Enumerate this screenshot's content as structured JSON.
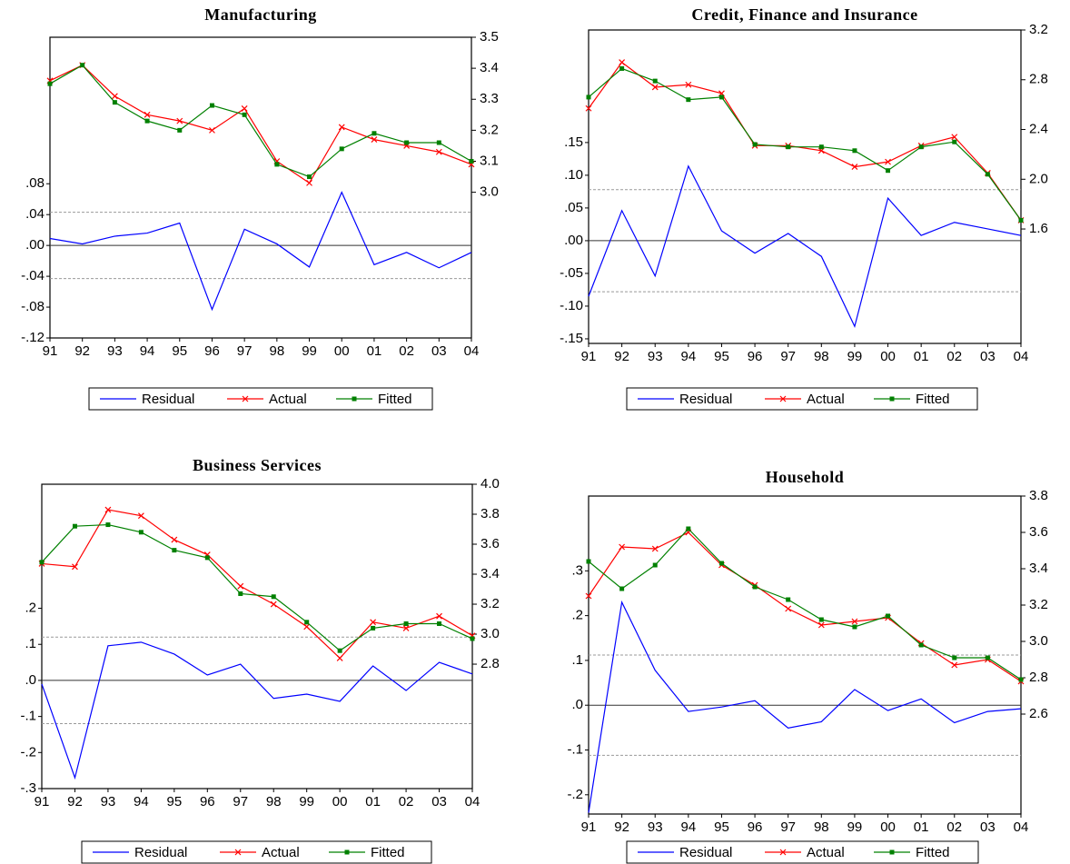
{
  "chart_data": [
    {
      "type": "line",
      "title": "Manufacturing",
      "categories": [
        "91",
        "92",
        "93",
        "94",
        "95",
        "96",
        "97",
        "98",
        "99",
        "00",
        "01",
        "02",
        "03",
        "04"
      ],
      "ylim": [
        -0.12,
        0.27
      ],
      "yticks": [
        {
          "value": -0.12,
          "label": "-.12"
        },
        {
          "value": -0.08,
          "label": "-.08"
        },
        {
          "value": -0.04,
          "label": "-.04"
        },
        {
          "value": 0,
          "label": ".00"
        },
        {
          "value": 0.04,
          "label": ".04"
        },
        {
          "value": 0.08,
          "label": ".08"
        }
      ],
      "y2lim": [
        2.53,
        3.5
      ],
      "y2ticks": [
        {
          "value": 3,
          "label": "3.0"
        },
        3.1,
        3.2,
        3.3,
        3.4,
        3.5
      ],
      "std_error_band": 0.043,
      "legend": "bottom",
      "series": [
        {
          "name": "Residual",
          "color": "#0000ff",
          "axis": "y",
          "values": [
            0.009,
            0.002,
            0.012,
            0.016,
            0.029,
            -0.083,
            0.021,
            0.002,
            -0.028,
            0.069,
            -0.025,
            -0.009,
            -0.029,
            -0.009
          ]
        },
        {
          "name": "Actual",
          "color": "#ff0000",
          "axis": "y2",
          "marker": "x",
          "values": [
            3.36,
            3.41,
            3.31,
            3.25,
            3.23,
            3.2,
            3.27,
            3.1,
            3.03,
            3.21,
            3.17,
            3.15,
            3.13,
            3.09
          ]
        },
        {
          "name": "Fitted",
          "color": "#008000",
          "axis": "y2",
          "marker": "square",
          "values": [
            3.35,
            3.41,
            3.29,
            3.23,
            3.2,
            3.28,
            3.25,
            3.09,
            3.05,
            3.14,
            3.19,
            3.16,
            3.16,
            3.1
          ]
        }
      ]
    },
    {
      "type": "line",
      "title": "Credit, Finance and Insurance",
      "categories": [
        "91",
        "92",
        "93",
        "94",
        "95",
        "96",
        "97",
        "98",
        "99",
        "00",
        "01",
        "02",
        "03",
        "04"
      ],
      "ylim": [
        -0.157,
        0.322
      ],
      "yticks": [
        {
          "value": -0.15,
          "label": "-.15"
        },
        {
          "value": -0.1,
          "label": "-.10"
        },
        {
          "value": -0.05,
          "label": "-.05"
        },
        {
          "value": 0,
          "label": ".00"
        },
        {
          "value": 0.05,
          "label": ".05"
        },
        {
          "value": 0.1,
          "label": ".10"
        },
        {
          "value": 0.15,
          "label": ".15"
        }
      ],
      "y2lim": [
        0.68,
        3.2
      ],
      "y2ticks": [
        1.6,
        {
          "value": 2,
          "label": "2.0"
        },
        2.4,
        2.8,
        3.2
      ],
      "std_error_band": 0.078,
      "legend": "bottom",
      "series": [
        {
          "name": "Residual",
          "color": "#0000ff",
          "axis": "y",
          "values": [
            -0.085,
            0.046,
            -0.054,
            0.114,
            0.015,
            -0.019,
            0.011,
            -0.024,
            -0.131,
            0.065,
            0.008,
            0.028,
            0.018,
            0.008
          ]
        },
        {
          "name": "Actual",
          "color": "#ff0000",
          "axis": "y2",
          "marker": "x",
          "values": [
            2.57,
            2.94,
            2.74,
            2.76,
            2.69,
            2.27,
            2.27,
            2.23,
            2.1,
            2.14,
            2.27,
            2.34,
            2.05,
            1.67
          ]
        },
        {
          "name": "Fitted",
          "color": "#008000",
          "axis": "y2",
          "marker": "square",
          "values": [
            2.66,
            2.89,
            2.79,
            2.64,
            2.66,
            2.28,
            2.26,
            2.26,
            2.23,
            2.07,
            2.26,
            2.3,
            2.04,
            1.67
          ]
        }
      ]
    },
    {
      "type": "line",
      "title": "Business Services",
      "categories": [
        "91",
        "92",
        "93",
        "94",
        "95",
        "96",
        "97",
        "98",
        "99",
        "00",
        "01",
        "02",
        "03",
        "04"
      ],
      "ylim": [
        -0.3,
        0.544
      ],
      "yticks": [
        {
          "value": -0.3,
          "label": "-.3"
        },
        {
          "value": -0.2,
          "label": "-.2"
        },
        {
          "value": -0.1,
          "label": "-.1"
        },
        {
          "value": 0,
          "label": ".0"
        },
        {
          "value": 0.1,
          "label": ".1"
        },
        {
          "value": 0.2,
          "label": ".2"
        }
      ],
      "y2lim": [
        1.97,
        4.0
      ],
      "y2ticks": [
        2.8,
        {
          "value": 3,
          "label": "3.0"
        },
        3.2,
        3.4,
        3.6,
        3.8,
        {
          "value": 4,
          "label": "4.0"
        }
      ],
      "std_error_band": 0.12,
      "legend": "bottom",
      "series": [
        {
          "name": "Residual",
          "color": "#0000ff",
          "axis": "y",
          "values": [
            -0.01,
            -0.27,
            0.096,
            0.106,
            0.073,
            0.015,
            0.045,
            -0.05,
            -0.038,
            -0.058,
            0.04,
            -0.028,
            0.05,
            0.018
          ]
        },
        {
          "name": "Actual",
          "color": "#ff0000",
          "axis": "y2",
          "marker": "x",
          "values": [
            3.47,
            3.45,
            3.83,
            3.79,
            3.63,
            3.53,
            3.32,
            3.2,
            3.05,
            2.84,
            3.08,
            3.04,
            3.12,
            2.99
          ]
        },
        {
          "name": "Fitted",
          "color": "#008000",
          "axis": "y2",
          "marker": "square",
          "values": [
            3.48,
            3.72,
            3.73,
            3.68,
            3.56,
            3.51,
            3.27,
            3.25,
            3.08,
            2.89,
            3.04,
            3.07,
            3.07,
            2.97
          ]
        }
      ]
    },
    {
      "type": "line",
      "title": "Household",
      "categories": [
        "91",
        "92",
        "93",
        "94",
        "95",
        "96",
        "97",
        "98",
        "99",
        "00",
        "01",
        "02",
        "03",
        "04"
      ],
      "ylim": [
        -0.243,
        0.467
      ],
      "yticks": [
        {
          "value": -0.2,
          "label": "-.2"
        },
        {
          "value": -0.1,
          "label": "-.1"
        },
        {
          "value": 0,
          "label": ".0"
        },
        {
          "value": 0.1,
          "label": ".1"
        },
        {
          "value": 0.2,
          "label": ".2"
        },
        {
          "value": 0.3,
          "label": ".3"
        }
      ],
      "y2lim": [
        2.05,
        3.8
      ],
      "y2ticks": [
        2.6,
        2.8,
        {
          "value": 3,
          "label": "3.0"
        },
        3.2,
        3.4,
        3.6,
        3.8
      ],
      "std_error_band": 0.112,
      "legend": "bottom",
      "series": [
        {
          "name": "Residual",
          "color": "#0000ff",
          "axis": "y",
          "values": [
            -0.24,
            0.23,
            0.078,
            -0.014,
            -0.004,
            0.01,
            -0.051,
            -0.037,
            0.035,
            -0.012,
            0.014,
            -0.039,
            -0.014,
            -0.008
          ]
        },
        {
          "name": "Actual",
          "color": "#ff0000",
          "axis": "y2",
          "marker": "x",
          "values": [
            3.25,
            3.52,
            3.51,
            3.6,
            3.42,
            3.31,
            3.18,
            3.09,
            3.11,
            3.13,
            2.99,
            2.87,
            2.9,
            2.78
          ]
        },
        {
          "name": "Fitted",
          "color": "#008000",
          "axis": "y2",
          "marker": "square",
          "values": [
            3.44,
            3.29,
            3.42,
            3.62,
            3.43,
            3.3,
            3.23,
            3.12,
            3.08,
            3.14,
            2.98,
            2.91,
            2.91,
            2.79
          ]
        }
      ]
    }
  ]
}
